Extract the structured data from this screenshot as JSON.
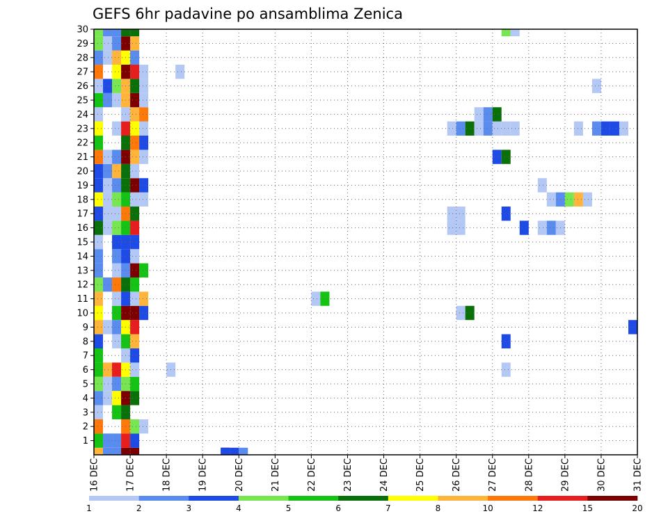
{
  "chart_data": {
    "type": "heatmap",
    "title": "GEFS 6hr padavine po ansamblima Zenica",
    "x_tick_labels": [
      "16 DEC",
      "17 DEC",
      "18 DEC",
      "19 DEC",
      "20 DEC",
      "21 DEC",
      "22 DEC",
      "23 DEC",
      "24 DEC",
      "25 DEC",
      "26 DEC",
      "27 DEC",
      "28 DEC",
      "29 DEC",
      "30 DEC",
      "31 DEC"
    ],
    "y_tick_labels": [
      "1",
      "2",
      "3",
      "4",
      "5",
      "6",
      "7",
      "8",
      "9",
      "10",
      "11",
      "12",
      "13",
      "14",
      "15",
      "16",
      "17",
      "18",
      "19",
      "20",
      "21",
      "22",
      "23",
      "24",
      "25",
      "26",
      "27",
      "28",
      "29",
      "30"
    ],
    "xlim_days": [
      0,
      15
    ],
    "ylim_members": [
      0,
      30
    ],
    "steps_per_day": 4,
    "grid": true,
    "colorbar": {
      "labels": [
        "1",
        "2",
        "3",
        "4",
        "5",
        "6",
        "7",
        "8",
        "10",
        "12",
        "15",
        "20"
      ],
      "colors": [
        "#b4c8f5",
        "#5a8cf0",
        "#1e4be6",
        "#78e650",
        "#14c314",
        "#0a700a",
        "#ffff00",
        "#ffb43c",
        "#ff780a",
        "#e61e1e",
        "#7d0000"
      ]
    },
    "cells": [
      [
        0,
        0,
        7
      ],
      [
        1,
        0,
        1
      ],
      [
        2,
        0,
        1
      ],
      [
        3,
        0,
        10
      ],
      [
        4,
        0,
        10
      ],
      [
        14,
        0,
        10
      ],
      [
        14,
        0,
        2
      ],
      [
        15,
        0,
        2
      ],
      [
        16,
        0,
        1
      ],
      [
        0,
        1,
        4
      ],
      [
        1,
        1,
        1
      ],
      [
        2,
        1,
        1
      ],
      [
        3,
        1,
        9
      ],
      [
        4,
        1,
        2
      ],
      [
        0,
        2,
        8
      ],
      [
        3,
        2,
        8
      ],
      [
        4,
        2,
        3
      ],
      [
        5,
        2,
        0
      ],
      [
        0,
        3,
        0
      ],
      [
        2,
        3,
        4
      ],
      [
        3,
        3,
        5
      ],
      [
        0,
        4,
        1
      ],
      [
        1,
        4,
        0
      ],
      [
        2,
        4,
        6
      ],
      [
        3,
        4,
        10
      ],
      [
        4,
        4,
        5
      ],
      [
        0,
        5,
        3
      ],
      [
        1,
        5,
        0
      ],
      [
        2,
        5,
        1
      ],
      [
        3,
        5,
        3
      ],
      [
        4,
        5,
        4
      ],
      [
        0,
        6,
        4
      ],
      [
        1,
        6,
        7
      ],
      [
        2,
        6,
        9
      ],
      [
        3,
        6,
        6
      ],
      [
        4,
        6,
        0
      ],
      [
        8,
        6,
        0
      ],
      [
        45,
        6,
        0
      ],
      [
        0,
        7,
        4
      ],
      [
        3,
        7,
        0
      ],
      [
        4,
        7,
        2
      ],
      [
        0,
        8,
        2
      ],
      [
        2,
        8,
        0
      ],
      [
        3,
        8,
        4
      ],
      [
        4,
        8,
        7
      ],
      [
        45,
        8,
        2
      ],
      [
        0,
        9,
        7
      ],
      [
        1,
        9,
        0
      ],
      [
        2,
        9,
        1
      ],
      [
        3,
        9,
        6
      ],
      [
        4,
        9,
        9
      ],
      [
        59,
        9,
        2
      ],
      [
        0,
        10,
        6
      ],
      [
        2,
        10,
        4
      ],
      [
        3,
        10,
        10
      ],
      [
        4,
        10,
        10
      ],
      [
        5,
        10,
        2
      ],
      [
        40,
        10,
        0
      ],
      [
        41,
        10,
        5
      ],
      [
        0,
        11,
        7
      ],
      [
        2,
        11,
        0
      ],
      [
        3,
        11,
        2
      ],
      [
        4,
        11,
        0
      ],
      [
        5,
        11,
        7
      ],
      [
        24,
        11,
        0
      ],
      [
        25,
        11,
        4
      ],
      [
        0,
        12,
        3
      ],
      [
        1,
        12,
        1
      ],
      [
        2,
        12,
        8
      ],
      [
        3,
        12,
        5
      ],
      [
        4,
        12,
        4
      ],
      [
        0,
        13,
        1
      ],
      [
        2,
        13,
        0
      ],
      [
        3,
        13,
        1
      ],
      [
        4,
        13,
        10
      ],
      [
        5,
        13,
        4
      ],
      [
        0,
        14,
        1
      ],
      [
        2,
        14,
        1
      ],
      [
        3,
        14,
        2
      ],
      [
        4,
        14,
        0
      ],
      [
        0,
        15,
        0
      ],
      [
        2,
        15,
        2
      ],
      [
        3,
        15,
        2
      ],
      [
        4,
        15,
        2
      ],
      [
        0,
        16,
        5
      ],
      [
        1,
        16,
        0
      ],
      [
        2,
        16,
        3
      ],
      [
        3,
        16,
        4
      ],
      [
        4,
        16,
        9
      ],
      [
        39,
        16,
        0
      ],
      [
        40,
        16,
        0
      ],
      [
        47,
        16,
        2
      ],
      [
        49,
        16,
        0
      ],
      [
        50,
        16,
        1
      ],
      [
        51,
        16,
        0
      ],
      [
        0,
        17,
        2
      ],
      [
        1,
        17,
        0
      ],
      [
        2,
        17,
        0
      ],
      [
        3,
        17,
        8
      ],
      [
        4,
        17,
        5
      ],
      [
        39,
        17,
        0
      ],
      [
        40,
        17,
        0
      ],
      [
        45,
        17,
        2
      ],
      [
        0,
        18,
        6
      ],
      [
        1,
        18,
        0
      ],
      [
        2,
        18,
        3
      ],
      [
        3,
        18,
        4
      ],
      [
        4,
        18,
        0
      ],
      [
        5,
        18,
        0
      ],
      [
        50,
        18,
        0
      ],
      [
        51,
        18,
        1
      ],
      [
        52,
        18,
        3
      ],
      [
        53,
        18,
        7
      ],
      [
        54,
        18,
        0
      ],
      [
        0,
        19,
        2
      ],
      [
        1,
        19,
        0
      ],
      [
        2,
        19,
        1
      ],
      [
        3,
        19,
        5
      ],
      [
        4,
        19,
        10
      ],
      [
        5,
        19,
        2
      ],
      [
        49,
        19,
        0
      ],
      [
        0,
        20,
        2
      ],
      [
        1,
        20,
        1
      ],
      [
        2,
        20,
        7
      ],
      [
        3,
        20,
        5
      ],
      [
        4,
        20,
        0
      ],
      [
        0,
        21,
        8
      ],
      [
        1,
        21,
        0
      ],
      [
        2,
        21,
        1
      ],
      [
        3,
        21,
        10
      ],
      [
        4,
        21,
        7
      ],
      [
        5,
        21,
        0
      ],
      [
        44,
        21,
        2
      ],
      [
        45,
        21,
        5
      ],
      [
        0,
        22,
        4
      ],
      [
        3,
        22,
        5
      ],
      [
        4,
        22,
        8
      ],
      [
        5,
        22,
        2
      ],
      [
        0,
        23,
        6
      ],
      [
        2,
        23,
        0
      ],
      [
        3,
        23,
        9
      ],
      [
        4,
        23,
        6
      ],
      [
        5,
        23,
        0
      ],
      [
        39,
        23,
        0
      ],
      [
        40,
        23,
        1
      ],
      [
        41,
        23,
        5
      ],
      [
        42,
        23,
        0
      ],
      [
        43,
        23,
        1
      ],
      [
        44,
        23,
        0
      ],
      [
        45,
        23,
        0
      ],
      [
        46,
        23,
        0
      ],
      [
        53,
        23,
        0
      ],
      [
        55,
        23,
        1
      ],
      [
        56,
        23,
        2
      ],
      [
        57,
        23,
        2
      ],
      [
        58,
        23,
        0
      ],
      [
        0,
        24,
        0
      ],
      [
        3,
        24,
        0
      ],
      [
        4,
        24,
        7
      ],
      [
        5,
        24,
        8
      ],
      [
        42,
        24,
        0
      ],
      [
        43,
        24,
        1
      ],
      [
        44,
        24,
        5
      ],
      [
        0,
        25,
        4
      ],
      [
        1,
        25,
        1
      ],
      [
        2,
        25,
        0
      ],
      [
        3,
        25,
        7
      ],
      [
        4,
        25,
        10
      ],
      [
        5,
        25,
        0
      ],
      [
        0,
        26,
        0
      ],
      [
        1,
        26,
        2
      ],
      [
        2,
        26,
        3
      ],
      [
        3,
        26,
        7
      ],
      [
        4,
        26,
        5
      ],
      [
        5,
        26,
        0
      ],
      [
        55,
        26,
        0
      ],
      [
        0,
        27,
        8
      ],
      [
        2,
        27,
        6
      ],
      [
        3,
        27,
        10
      ],
      [
        4,
        27,
        9
      ],
      [
        5,
        27,
        0
      ],
      [
        9,
        27,
        0
      ],
      [
        0,
        28,
        1
      ],
      [
        1,
        28,
        0
      ],
      [
        2,
        28,
        7
      ],
      [
        3,
        28,
        6
      ],
      [
        4,
        28,
        1
      ],
      [
        0,
        29,
        3
      ],
      [
        1,
        29,
        0
      ],
      [
        2,
        29,
        1
      ],
      [
        3,
        29,
        10
      ],
      [
        4,
        29,
        7
      ],
      [
        0,
        30,
        3
      ],
      [
        1,
        30,
        1
      ],
      [
        2,
        30,
        1
      ],
      [
        3,
        30,
        5
      ],
      [
        4,
        30,
        5
      ],
      [
        45,
        30,
        3
      ],
      [
        46,
        30,
        0
      ]
    ]
  }
}
